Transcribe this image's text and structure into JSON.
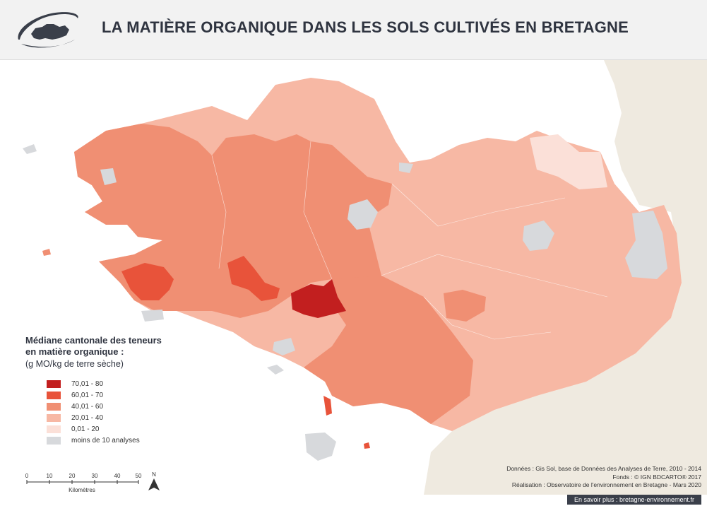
{
  "header": {
    "title": "LA MATIÈRE ORGANIQUE DANS LES SOLS CULTIVÉS EN BRETAGNE",
    "logo_icon": "brittany-logo-icon"
  },
  "legend": {
    "title_line1": "Médiane cantonale des teneurs",
    "title_line2": "en matière organique :",
    "subtitle": "(g MO/kg de terre sèche)",
    "items": [
      {
        "label": "70,01 - 80",
        "color": "#c21f1f"
      },
      {
        "label": "60,01 - 70",
        "color": "#e8533a"
      },
      {
        "label": "40,01 - 60",
        "color": "#f08f73"
      },
      {
        "label": "20,01 - 40",
        "color": "#f7b8a4"
      },
      {
        "label": "0,01 - 20",
        "color": "#fbe0d8"
      },
      {
        "label": "moins de 10 analyses",
        "color": "#d7d9dc"
      }
    ]
  },
  "scale": {
    "ticks": [
      "0",
      "10",
      "20",
      "30",
      "40",
      "50"
    ],
    "unit": "Kilomètres",
    "north": "N"
  },
  "credits": {
    "line1": "Données : Gis Sol, base de Données des Analyses de Terre, 2010 - 2014",
    "line2": "Fonds : © IGN BDCARTO® 2017",
    "line3": "Réalisation : Observatoire de l'environnement en Bretagne - Mars 2020"
  },
  "footer": {
    "link_text": "En savoir plus : bretagne-environnement.fr"
  },
  "colors": {
    "land_outside": "#efeae0",
    "sea": "#ffffff",
    "island_grey": "#d7d9dc"
  }
}
